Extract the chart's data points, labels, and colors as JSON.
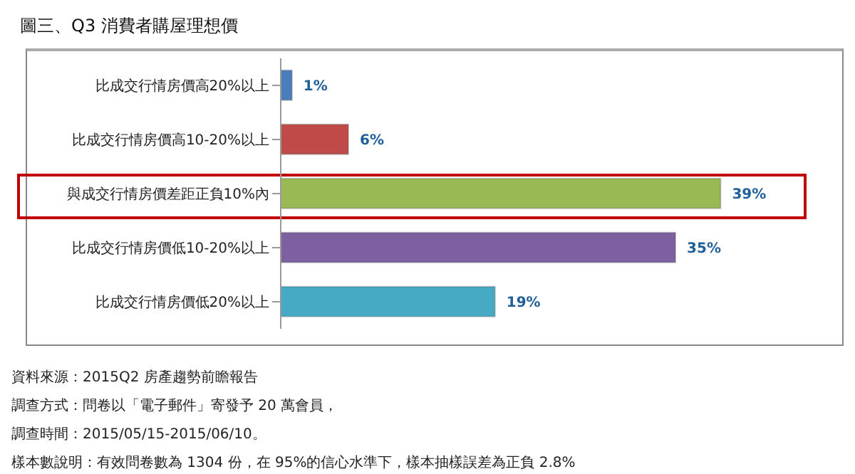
{
  "chart_data": {
    "type": "bar",
    "orientation": "horizontal",
    "title": "圖三、Q3 消費者購屋理想價",
    "categories": [
      "比成交行情房價高20%以上",
      "比成交行情房價高10-20%以上",
      "與成交行情房價差距正負10%內",
      "比成交行情房價低10-20%以上",
      "比成交行情房價低20%以上"
    ],
    "values": [
      1,
      6,
      39,
      35,
      19
    ],
    "value_labels": [
      "1%",
      "6%",
      "39%",
      "35%",
      "19%"
    ],
    "colors": [
      "#4a7ebb",
      "#be4b48",
      "#98b954",
      "#7d60a0",
      "#46aac5"
    ],
    "annotations": [
      "資料來源：2015Q2 房產趨勢前瞻報告",
      "調查方式：問卷以「電子郵件」寄發予 20 萬會員，",
      "調查時間：2015/05/15-2015/06/10。",
      "樣本數說明：有效問卷數為 1304 份，在 95%的信心水準下，樣本抽樣誤差為正負 2.8%"
    ]
  }
}
